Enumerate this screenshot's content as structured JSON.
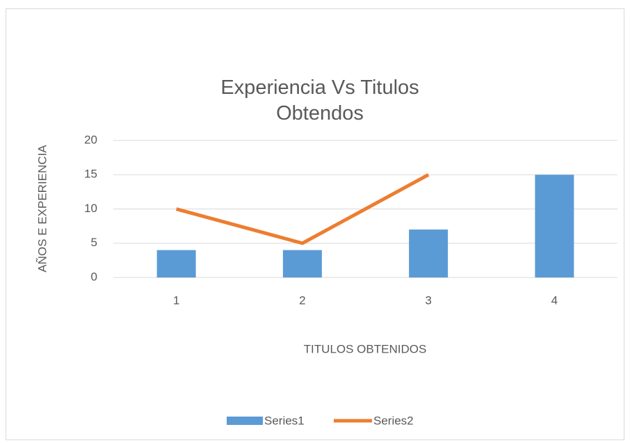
{
  "chart_data": {
    "type": "bar",
    "title": "Experiencia Vs Titulos Obtendos",
    "x_label": "TITULOS OBTENIDOS",
    "y_label": "AÑOS E EXPERIENCIA",
    "categories": [
      "1",
      "2",
      "3",
      "4"
    ],
    "series": [
      {
        "name": "Series1",
        "type": "bar",
        "color": "#5b9bd5",
        "values": [
          4,
          4,
          7,
          15
        ]
      },
      {
        "name": "Series2",
        "type": "line",
        "color": "#ed7d31",
        "values": [
          10,
          5,
          15,
          null
        ]
      }
    ],
    "ylim": [
      0,
      20
    ],
    "yticks": [
      0,
      5,
      10,
      15,
      20
    ],
    "grid": true,
    "legend": "bottom"
  }
}
